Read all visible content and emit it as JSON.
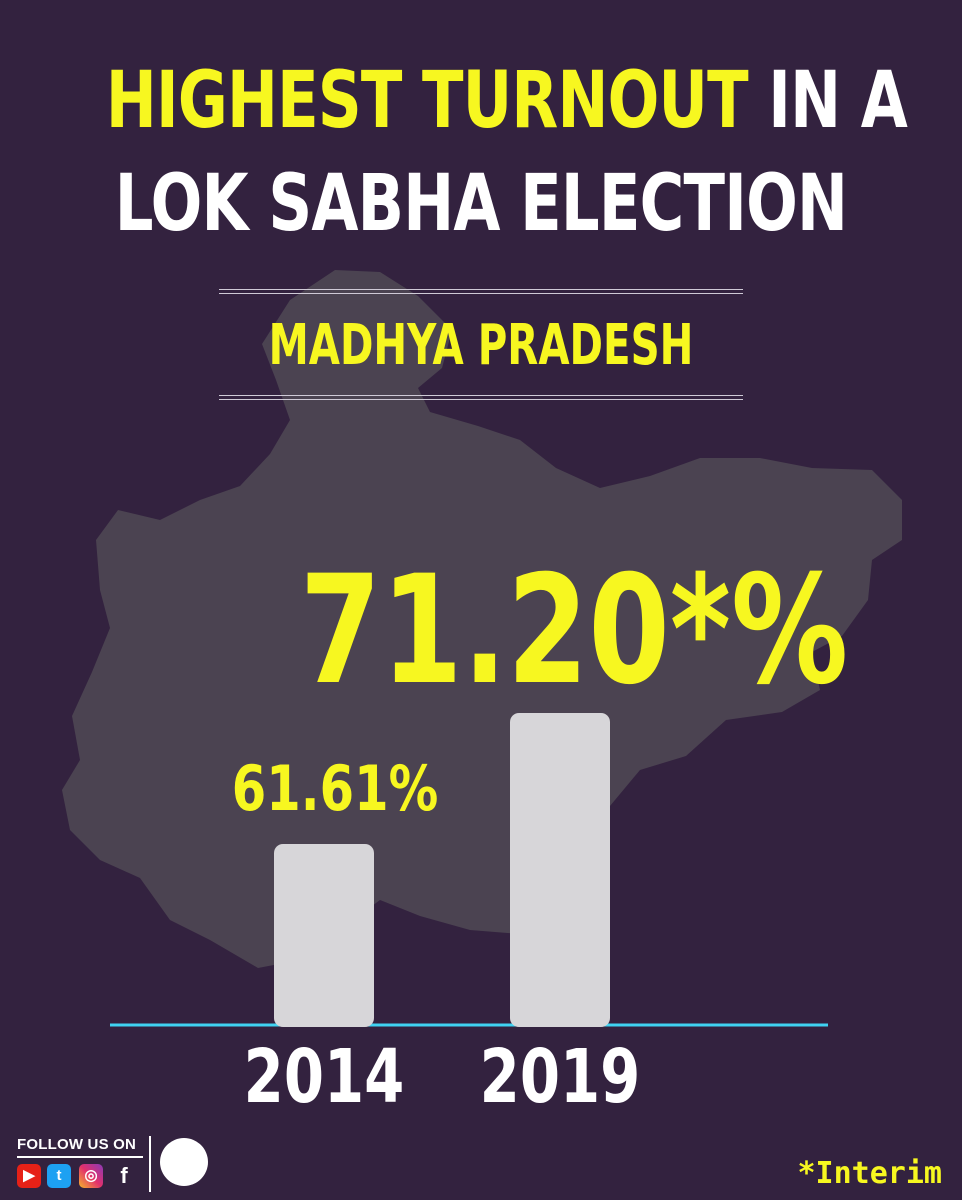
{
  "title": {
    "line1_highlight": "HIGHEST  TURNOUT",
    "line1_rest": " IN A",
    "line2": "LOK SABHA ELECTION"
  },
  "subtitle": "MADHYA PRADESH",
  "chart_data": {
    "type": "bar",
    "categories": [
      "2014",
      "2019"
    ],
    "values": [
      61.61,
      71.2
    ],
    "value_labels": [
      "61.61%",
      "71.20*%"
    ],
    "ylim": [
      0,
      72
    ],
    "grid": false,
    "colors": {
      "bar": "#d7d6d9",
      "baseline": "#3fd3f2",
      "value_label": "#f7f720",
      "tick_label": "#ffffff"
    }
  },
  "footer": {
    "follow_text": "FOLLOW US ON",
    "social_icons": [
      "youtube-icon",
      "twitter-icon",
      "instagram-icon",
      "facebook-icon"
    ],
    "note": "*Interim"
  },
  "colors": {
    "background": "#33223f",
    "map": "#4b4351",
    "accent": "#f7f720"
  }
}
